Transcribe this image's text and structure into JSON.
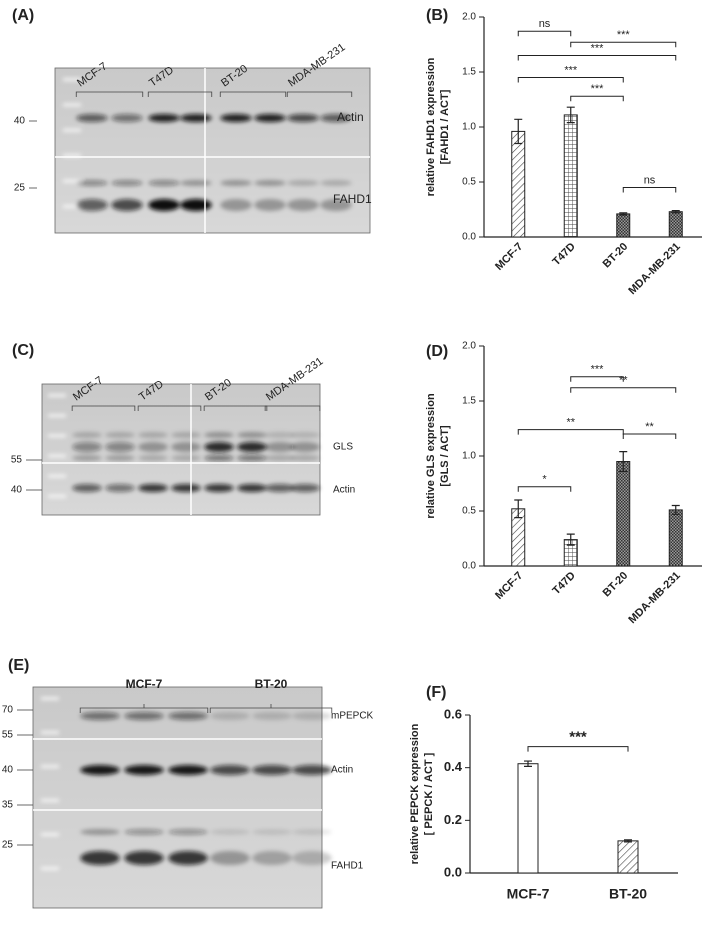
{
  "blots": [
    {
      "panel": "(A)",
      "lanes": [
        "MCF-7",
        "T47D",
        "BT-20",
        "MDA-MB-231"
      ],
      "markers": [
        "40",
        "25"
      ],
      "bands": [
        "Actin",
        "FAHD1"
      ]
    },
    {
      "panel": "(C)",
      "lanes": [
        "MCF-7",
        "T47D",
        "BT-20",
        "MDA-MB-231"
      ],
      "markers": [
        "55",
        "40"
      ],
      "bands": [
        "GLS",
        "Actin"
      ]
    },
    {
      "panel": "(E)",
      "lanes": [
        "MCF-7",
        "BT-20"
      ],
      "markers": [
        "70",
        "55",
        "40",
        "35",
        "25"
      ],
      "bands": [
        "mPEPCK",
        "Actin",
        "FAHD1"
      ]
    }
  ],
  "chart_data": [
    {
      "type": "bar",
      "panel": "(B)",
      "ylabel": [
        "relative FAHD1 expression",
        "[FAHD1 / ACT]"
      ],
      "categories": [
        "MCF-7",
        "T47D",
        "BT-20",
        "MDA-MB-231"
      ],
      "values": [
        0.96,
        1.11,
        0.21,
        0.23
      ],
      "errors": [
        0.11,
        0.07,
        0.01,
        0.01
      ],
      "fills": [
        "diag",
        "grid",
        "cross",
        "cross"
      ],
      "ylim": [
        0,
        2
      ],
      "yticks": [
        {
          "value": 0,
          "label": "0.0"
        },
        0.5,
        {
          "value": 1,
          "label": "1.0"
        },
        1.5,
        {
          "value": 2,
          "label": "2.0"
        }
      ],
      "annotations": [
        {
          "label": "ns",
          "from": "MCF-7",
          "to": "T47D",
          "y": 1.87
        },
        {
          "label": "***",
          "from": "T47D",
          "to": "MDA-MB-231",
          "y": 1.77
        },
        {
          "label": "***",
          "from": "MCF-7",
          "to": "MDA-MB-231",
          "y": 1.65
        },
        {
          "label": "***",
          "from": "MCF-7",
          "to": "BT-20",
          "y": 1.45
        },
        {
          "label": "***",
          "from": "T47D",
          "to": "BT-20",
          "y": 1.28
        },
        {
          "label": "ns",
          "from": "BT-20",
          "to": "MDA-MB-231",
          "y": 0.45
        }
      ]
    },
    {
      "type": "bar",
      "panel": "(D)",
      "ylabel": [
        "relative GLS expression",
        "[GLS / ACT]"
      ],
      "categories": [
        "MCF-7",
        "T47D",
        "BT-20",
        "MDA-MB-231"
      ],
      "values": [
        0.52,
        0.24,
        0.95,
        0.51
      ],
      "errors": [
        0.08,
        0.05,
        0.09,
        0.04
      ],
      "fills": [
        "diag",
        "grid",
        "cross",
        "cross"
      ],
      "ylim": [
        0,
        2
      ],
      "yticks": [
        {
          "value": 0,
          "label": "0.0"
        },
        0.5,
        {
          "value": 1,
          "label": "1.0"
        },
        1.5,
        {
          "value": 2,
          "label": "2.0"
        }
      ],
      "annotations": [
        {
          "label": "***",
          "from": "T47D",
          "to": "BT-20",
          "y": 1.72
        },
        {
          "label": "**",
          "from": "T47D",
          "to": "MDA-MB-231",
          "y": 1.62
        },
        {
          "label": "**",
          "from": "MCF-7",
          "to": "BT-20",
          "y": 1.24
        },
        {
          "label": "**",
          "from": "BT-20",
          "to": "MDA-MB-231",
          "y": 1.2
        },
        {
          "label": "*",
          "from": "MCF-7",
          "to": "T47D",
          "y": 0.72
        }
      ]
    },
    {
      "type": "bar",
      "panel": "(F)",
      "ylabel": [
        "relative PEPCK expression",
        "[ PEPCK / ACT ]"
      ],
      "categories": [
        "MCF-7",
        "BT-20"
      ],
      "values": [
        0.415,
        0.122
      ],
      "errors": [
        0.01,
        0.004
      ],
      "fills": [
        "none",
        "diag"
      ],
      "ylim": [
        0,
        0.6
      ],
      "yticks": [
        {
          "value": 0,
          "label": "0.0"
        },
        0.2,
        0.4,
        0.6
      ],
      "annotations": [
        {
          "label": "***",
          "from": "MCF-7",
          "to": "BT-20",
          "y": 0.48
        }
      ]
    }
  ]
}
